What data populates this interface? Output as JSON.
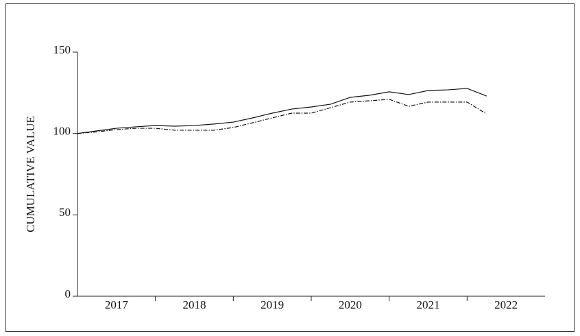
{
  "chart_data": {
    "type": "line",
    "y_label": "CUMULATIVE VALUE",
    "categories": [
      "2017",
      "2018",
      "2019",
      "2020",
      "2021",
      "2022"
    ],
    "x": [
      2017,
      2017.25,
      2017.5,
      2017.75,
      2018,
      2018.25,
      2018.5,
      2018.75,
      2019,
      2019.25,
      2019.5,
      2019.75,
      2020,
      2020.25,
      2020.5,
      2020.75,
      2021,
      2021.25,
      2021.5,
      2021.75,
      2022,
      2022.25
    ],
    "xlim": [
      2017,
      2023
    ],
    "xticks": [
      2018,
      2019,
      2020,
      2021,
      2022
    ],
    "ylim": [
      0,
      150
    ],
    "yticks": [
      0,
      50,
      100,
      150
    ],
    "series": [
      {
        "color": "#111111",
        "dash": "solid",
        "values": [
          100,
          101.6,
          103.2,
          104.1,
          104.9,
          104.5,
          104.9,
          105.8,
          107,
          109.6,
          112.5,
          115,
          116.3,
          118,
          122.2,
          123.5,
          125.6,
          123.9,
          126.4,
          126.8,
          127.7,
          123
        ]
      },
      {
        "color": "#111111",
        "dash": "dashdot",
        "values": [
          100,
          101,
          102.4,
          103.2,
          103.2,
          102,
          102,
          102,
          103.7,
          106.6,
          109.6,
          112.5,
          112.5,
          115.9,
          119.3,
          120.1,
          121,
          116.7,
          119.3,
          119.3,
          119.3,
          112
        ]
      }
    ]
  }
}
